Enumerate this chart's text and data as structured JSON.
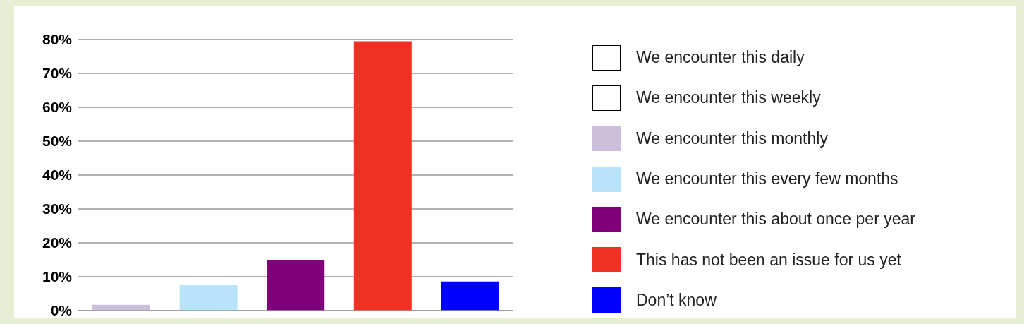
{
  "chart_data": {
    "type": "bar",
    "categories": [
      null,
      null,
      null,
      null,
      null
    ],
    "stacked": true,
    "series": [
      {
        "name": "We encounter this daily",
        "color": "#ffffff",
        "values": [
          null,
          null,
          null,
          null,
          null
        ]
      },
      {
        "name": "We encounter this weekly",
        "color": "#ffffff",
        "values": [
          null,
          null,
          null,
          null,
          null
        ]
      },
      {
        "name": "We encounter this monthly",
        "color": "#cbbfdb",
        "values": [
          1.7,
          null,
          null,
          null,
          null
        ]
      },
      {
        "name": "We encounter this every few months",
        "color": "#b8e3f8",
        "values": [
          null,
          7.5,
          null,
          null,
          null
        ]
      },
      {
        "name": "We encounter this about once per year",
        "color": "#80007c",
        "values": [
          null,
          null,
          15,
          null,
          null
        ]
      },
      {
        "name": "This has not been an issue for us yet",
        "color": "#ef3124",
        "values": [
          null,
          null,
          null,
          79.5,
          null
        ]
      },
      {
        "name": "Don’t know",
        "color": "#0000ff",
        "values": [
          null,
          null,
          null,
          null,
          8.6
        ]
      }
    ],
    "ylim": [
      0,
      80
    ],
    "yticks": [
      {
        "value": 0,
        "label": "0%"
      },
      {
        "value": 10,
        "label": "10%"
      },
      {
        "value": 20,
        "label": "20%"
      },
      {
        "value": 30,
        "label": "30%"
      },
      {
        "value": 40,
        "label": "40%"
      },
      {
        "value": 50,
        "label": "50%"
      },
      {
        "value": 60,
        "label": "60%"
      },
      {
        "value": 70,
        "label": "70%"
      },
      {
        "value": 80,
        "label": "80%"
      }
    ],
    "grid": "y",
    "legend": "right"
  }
}
